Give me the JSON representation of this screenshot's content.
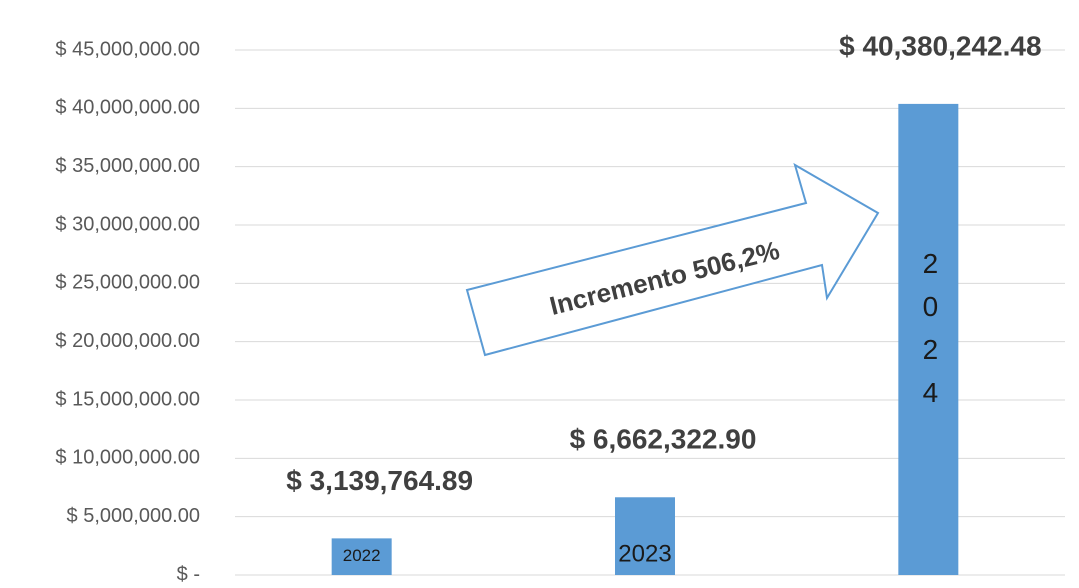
{
  "chart_data": {
    "type": "bar",
    "categories": [
      "2022",
      "2023",
      "2024"
    ],
    "values": [
      3139764.89,
      6662322.9,
      40380242.48
    ],
    "value_labels": [
      "$ 3,139,764.89",
      "$ 6,662,322.90",
      "$ 40,380,242.48"
    ],
    "color": "#5b9bd5",
    "ylim": [
      0,
      45000000
    ],
    "yticks": [
      {
        "value": 0,
        "label": "$ -"
      },
      {
        "value": 5000000,
        "label": "$ 5,000,000.00"
      },
      {
        "value": 10000000,
        "label": "$ 10,000,000.00"
      },
      {
        "value": 15000000,
        "label": "$ 15,000,000.00"
      },
      {
        "value": 20000000,
        "label": "$ 20,000,000.00"
      },
      {
        "value": 25000000,
        "label": "$ 25,000,000.00"
      },
      {
        "value": 30000000,
        "label": "$ 30,000,000.00"
      },
      {
        "value": 35000000,
        "label": "$ 35,000,000.00"
      },
      {
        "value": 40000000,
        "label": "$ 40,000,000.00"
      },
      {
        "value": 45000000,
        "label": "$ 45,000,000.00"
      }
    ],
    "grid": true,
    "annotation": "Incremento 506,2%"
  }
}
